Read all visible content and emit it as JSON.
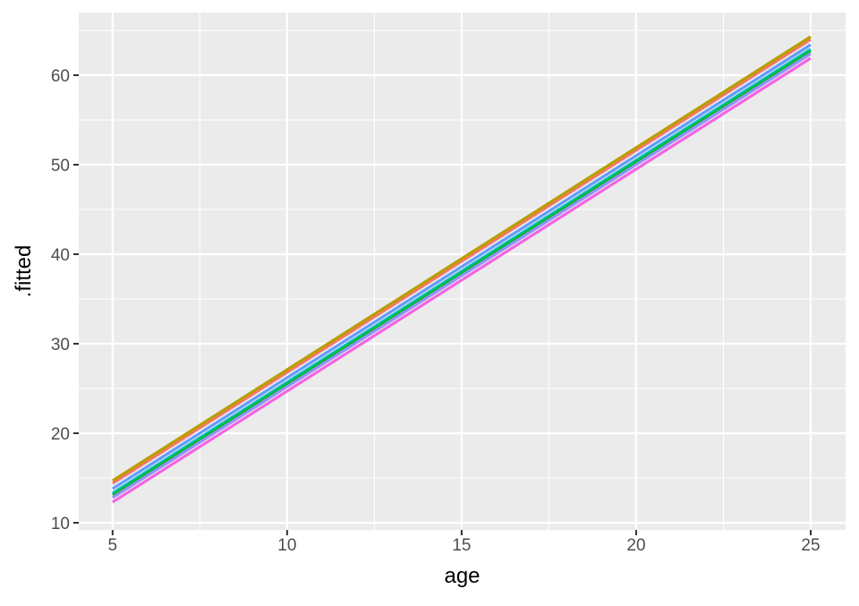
{
  "chart_data": {
    "type": "line",
    "title": "",
    "xlabel": "age",
    "ylabel": ".fitted",
    "xlim": [
      4.03,
      26
    ],
    "ylim": [
      9.2,
      67
    ],
    "x_ticks": [
      5,
      10,
      15,
      20,
      25
    ],
    "y_ticks": [
      10,
      20,
      30,
      40,
      50,
      60
    ],
    "x_tick_labels": [
      "5",
      "10",
      "15",
      "20",
      "25"
    ],
    "y_tick_labels": [
      "10",
      "20",
      "30",
      "40",
      "50",
      "60"
    ],
    "grid": true,
    "legend": "none",
    "background": "#EBEBEB",
    "series": [
      {
        "color": "#F8766D",
        "x": [
          5,
          25
        ],
        "values": [
          14.4,
          64.0
        ]
      },
      {
        "color": "#B79F00",
        "x": [
          5,
          25
        ],
        "values": [
          14.7,
          64.3
        ]
      },
      {
        "color": "#619CFF",
        "x": [
          5,
          25
        ],
        "values": [
          13.8,
          63.4
        ]
      },
      {
        "color": "#00BFC4",
        "x": [
          5,
          25
        ],
        "values": [
          13.3,
          62.9
        ]
      },
      {
        "color": "#00BA38",
        "x": [
          5,
          25
        ],
        "values": [
          13.1,
          62.7
        ]
      },
      {
        "color": "#9590FF",
        "x": [
          5,
          25
        ],
        "values": [
          12.8,
          62.4
        ]
      },
      {
        "color": "#F564E3",
        "x": [
          5,
          25
        ],
        "values": [
          12.3,
          61.9
        ]
      }
    ]
  }
}
